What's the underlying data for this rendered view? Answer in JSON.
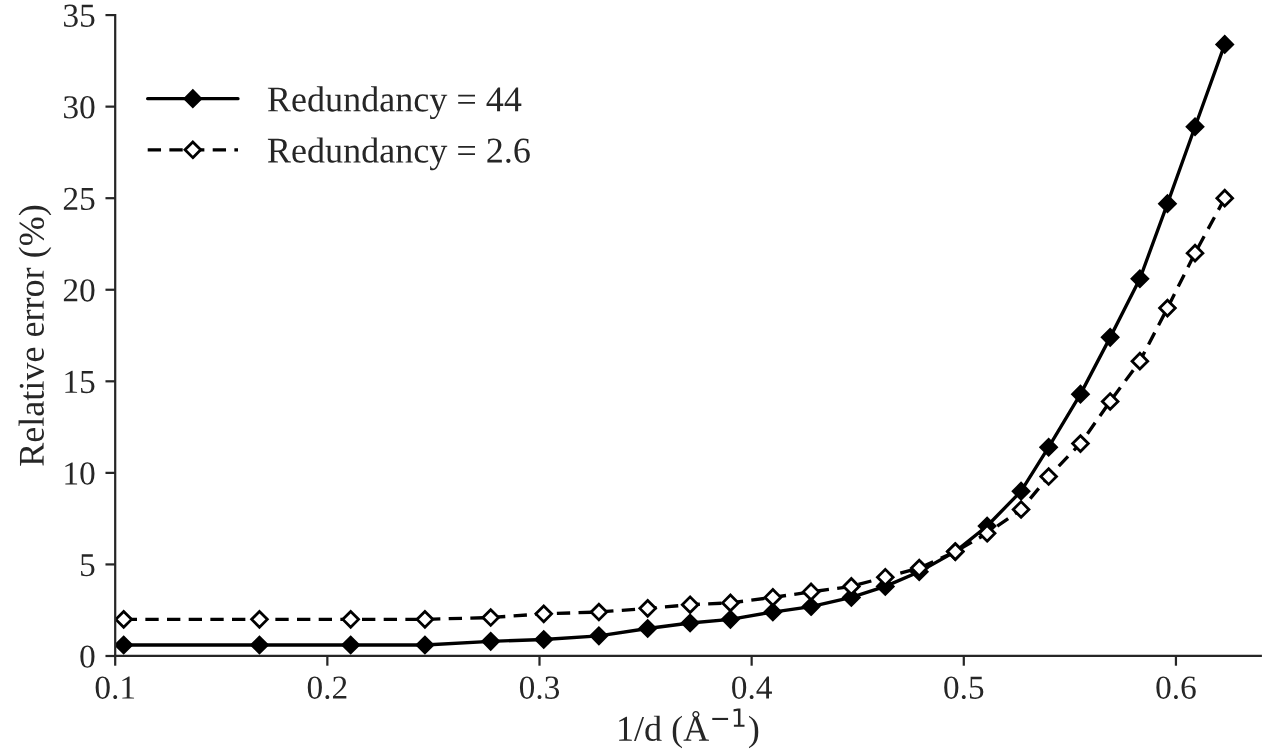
{
  "chart_data": {
    "type": "line",
    "xlabel": "1/d (Å$^{−1}$)",
    "ylabel": "Relative error (%)",
    "xlim": [
      0.1,
      0.64
    ],
    "xticks": [
      0.1,
      0.2,
      0.3,
      0.4,
      0.5,
      0.6
    ],
    "ylim": [
      0,
      35
    ],
    "yticks": [
      0,
      5,
      10,
      15,
      20,
      25,
      30,
      35
    ],
    "grid": false,
    "legend": "top left",
    "marker": "diamond",
    "x": [
      0.104,
      0.168,
      0.211,
      0.246,
      0.277,
      0.302,
      0.328,
      0.351,
      0.371,
      0.39,
      0.41,
      0.428,
      0.447,
      0.463,
      0.479,
      0.496,
      0.511,
      0.527,
      0.54,
      0.555,
      0.569,
      0.583,
      0.596,
      0.609,
      0.623
    ],
    "series": [
      {
        "name": "Redundancy = 44",
        "color": "#000000",
        "line_style": "solid",
        "values": [
          0.6,
          0.6,
          0.6,
          0.6,
          0.8,
          0.9,
          1.1,
          1.5,
          1.8,
          2.0,
          2.4,
          2.7,
          3.2,
          3.8,
          4.6,
          5.7,
          7.1,
          9.0,
          11.4,
          14.3,
          17.4,
          20.6,
          24.7,
          28.9,
          33.4
        ]
      },
      {
        "name": "Redundancy = 2.6",
        "color": "#000000",
        "line_style": "dashed",
        "values": [
          2.0,
          2.0,
          2.0,
          2.0,
          2.1,
          2.3,
          2.4,
          2.6,
          2.8,
          2.9,
          3.2,
          3.5,
          3.8,
          4.3,
          4.8,
          5.7,
          6.7,
          8.0,
          9.8,
          11.6,
          13.9,
          16.1,
          19.0,
          22.0,
          25.0
        ]
      }
    ]
  }
}
